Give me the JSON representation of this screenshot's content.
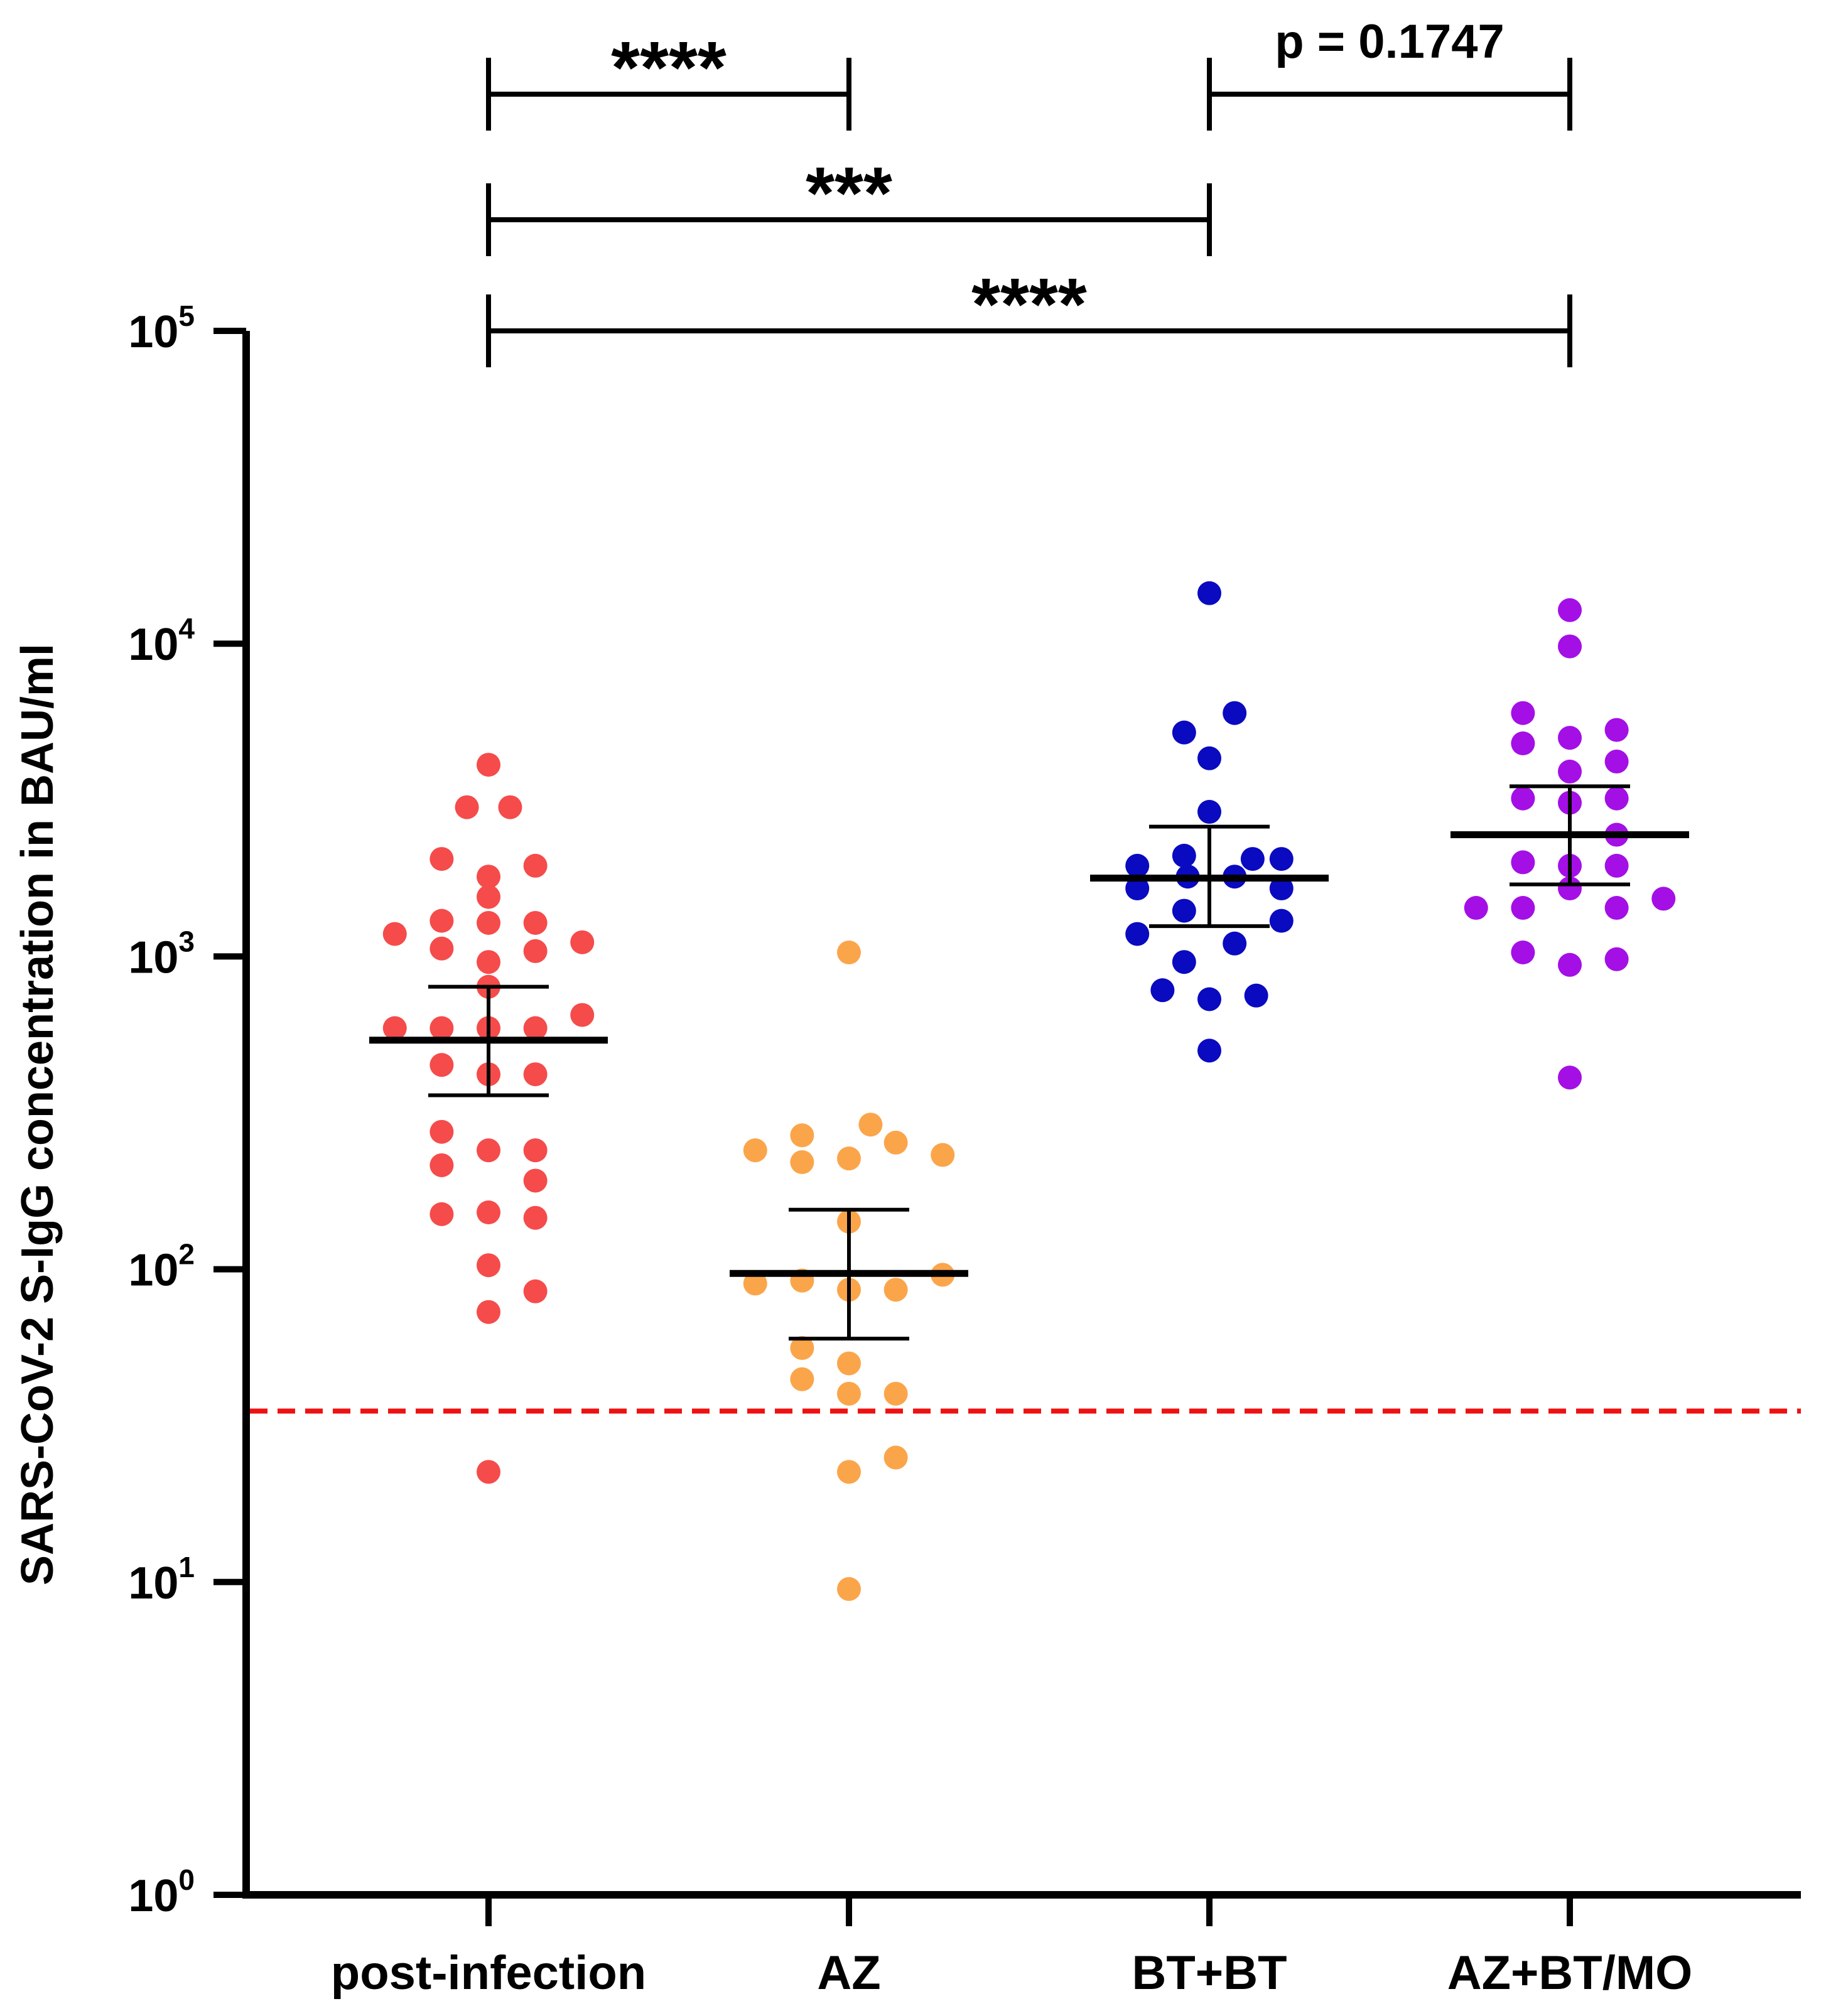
{
  "chart_data": {
    "type": "scatter",
    "subtype": "dot-plot-with-mean-and-sem",
    "title": "",
    "xlabel": "",
    "ylabel": "SARS-CoV-2 S-IgG concentration in BAU/ml",
    "yscale": "log",
    "ylim": [
      1,
      100000
    ],
    "y_ticks": [
      {
        "value": 1,
        "base": "10",
        "exp": "0"
      },
      {
        "value": 10,
        "base": "10",
        "exp": "1"
      },
      {
        "value": 100,
        "base": "10",
        "exp": "2"
      },
      {
        "value": 1000,
        "base": "10",
        "exp": "3"
      },
      {
        "value": 10000,
        "base": "10",
        "exp": "4"
      },
      {
        "value": 100000,
        "base": "10",
        "exp": "5"
      }
    ],
    "categories": [
      "post-infection",
      "AZ",
      "BT+BT",
      "AZ+BT/MO"
    ],
    "threshold": {
      "value": 35.2,
      "color": "#ee1111",
      "style": "dashed"
    },
    "series": [
      {
        "name": "post-infection",
        "color": "#f54b4b",
        "mean": 540,
        "sem_low": 360,
        "sem_high": 800,
        "points": [
          {
            "dx": 0,
            "y": 4100
          },
          {
            "dx": -0.06,
            "y": 3000
          },
          {
            "dx": 0.06,
            "y": 3000
          },
          {
            "dx": -0.13,
            "y": 2050
          },
          {
            "dx": 0.13,
            "y": 1950
          },
          {
            "dx": 0,
            "y": 1800
          },
          {
            "dx": 0,
            "y": 1550
          },
          {
            "dx": -0.13,
            "y": 1300
          },
          {
            "dx": 0.13,
            "y": 1280
          },
          {
            "dx": 0,
            "y": 1280
          },
          {
            "dx": -0.26,
            "y": 1180
          },
          {
            "dx": 0.26,
            "y": 1110
          },
          {
            "dx": -0.13,
            "y": 1060
          },
          {
            "dx": 0.13,
            "y": 1040
          },
          {
            "dx": 0,
            "y": 960
          },
          {
            "dx": 0,
            "y": 800
          },
          {
            "dx": 0.26,
            "y": 650
          },
          {
            "dx": -0.26,
            "y": 590
          },
          {
            "dx": -0.13,
            "y": 590
          },
          {
            "dx": 0,
            "y": 590
          },
          {
            "dx": 0.13,
            "y": 590
          },
          {
            "dx": -0.13,
            "y": 450
          },
          {
            "dx": 0,
            "y": 420
          },
          {
            "dx": 0.13,
            "y": 420
          },
          {
            "dx": -0.13,
            "y": 275
          },
          {
            "dx": 0,
            "y": 240
          },
          {
            "dx": 0.13,
            "y": 240
          },
          {
            "dx": -0.13,
            "y": 215
          },
          {
            "dx": 0.13,
            "y": 192
          },
          {
            "dx": -0.13,
            "y": 150
          },
          {
            "dx": 0,
            "y": 152
          },
          {
            "dx": 0.13,
            "y": 146
          },
          {
            "dx": 0,
            "y": 103
          },
          {
            "dx": 0.13,
            "y": 85
          },
          {
            "dx": 0,
            "y": 73
          },
          {
            "dx": 0,
            "y": 22.5
          }
        ]
      },
      {
        "name": "AZ",
        "color": "#fba54a",
        "mean": 97,
        "sem_low": 60,
        "sem_high": 155,
        "points": [
          {
            "dx": 0,
            "y": 1030
          },
          {
            "dx": 0.06,
            "y": 290
          },
          {
            "dx": -0.13,
            "y": 268
          },
          {
            "dx": 0.13,
            "y": 254
          },
          {
            "dx": -0.26,
            "y": 240
          },
          {
            "dx": 0.26,
            "y": 232
          },
          {
            "dx": -0.13,
            "y": 220
          },
          {
            "dx": 0,
            "y": 226
          },
          {
            "dx": 0,
            "y": 142
          },
          {
            "dx": 0.26,
            "y": 96
          },
          {
            "dx": -0.26,
            "y": 90
          },
          {
            "dx": -0.13,
            "y": 92
          },
          {
            "dx": 0,
            "y": 86
          },
          {
            "dx": 0.13,
            "y": 86
          },
          {
            "dx": -0.13,
            "y": 56
          },
          {
            "dx": 0,
            "y": 50
          },
          {
            "dx": -0.13,
            "y": 44.5
          },
          {
            "dx": 0,
            "y": 40
          },
          {
            "dx": 0.13,
            "y": 40
          },
          {
            "dx": 0.13,
            "y": 25
          },
          {
            "dx": 0,
            "y": 22.5
          },
          {
            "dx": 0,
            "y": 9.5
          }
        ]
      },
      {
        "name": "BT+BT",
        "color": "#0a0ac0",
        "mean": 1780,
        "sem_low": 1250,
        "sem_high": 2600,
        "points": [
          {
            "dx": 0,
            "y": 14500
          },
          {
            "dx": 0.07,
            "y": 6000
          },
          {
            "dx": -0.07,
            "y": 5200
          },
          {
            "dx": 0,
            "y": 4300
          },
          {
            "dx": 0,
            "y": 2900
          },
          {
            "dx": -0.07,
            "y": 2100
          },
          {
            "dx": 0.12,
            "y": 2050
          },
          {
            "dx": -0.2,
            "y": 1950
          },
          {
            "dx": 0.2,
            "y": 2050
          },
          {
            "dx": -0.06,
            "y": 1800
          },
          {
            "dx": 0.07,
            "y": 1800
          },
          {
            "dx": -0.2,
            "y": 1650
          },
          {
            "dx": 0.2,
            "y": 1650
          },
          {
            "dx": -0.07,
            "y": 1400
          },
          {
            "dx": 0.2,
            "y": 1300
          },
          {
            "dx": -0.2,
            "y": 1180
          },
          {
            "dx": 0.07,
            "y": 1100
          },
          {
            "dx": -0.07,
            "y": 960
          },
          {
            "dx": -0.13,
            "y": 780
          },
          {
            "dx": 0.13,
            "y": 750
          },
          {
            "dx": 0,
            "y": 730
          },
          {
            "dx": 0,
            "y": 500
          }
        ]
      },
      {
        "name": "AZ+BT/MO",
        "color": "#a40fe6",
        "mean": 2450,
        "sem_low": 1700,
        "sem_high": 3500,
        "points": [
          {
            "dx": 0,
            "y": 12800
          },
          {
            "dx": 0,
            "y": 9800
          },
          {
            "dx": -0.13,
            "y": 6000
          },
          {
            "dx": 0.13,
            "y": 5300
          },
          {
            "dx": 0,
            "y": 5000
          },
          {
            "dx": -0.13,
            "y": 4800
          },
          {
            "dx": 0.13,
            "y": 4200
          },
          {
            "dx": 0,
            "y": 3900
          },
          {
            "dx": -0.13,
            "y": 3200
          },
          {
            "dx": 0,
            "y": 3100
          },
          {
            "dx": 0.13,
            "y": 3200
          },
          {
            "dx": 0.13,
            "y": 2450
          },
          {
            "dx": -0.13,
            "y": 2000
          },
          {
            "dx": 0,
            "y": 1950
          },
          {
            "dx": 0.13,
            "y": 1950
          },
          {
            "dx": 0,
            "y": 1650
          },
          {
            "dx": 0.26,
            "y": 1530
          },
          {
            "dx": -0.26,
            "y": 1430
          },
          {
            "dx": -0.13,
            "y": 1430
          },
          {
            "dx": 0.13,
            "y": 1430
          },
          {
            "dx": -0.13,
            "y": 1030
          },
          {
            "dx": 0.13,
            "y": 980
          },
          {
            "dx": 0,
            "y": 940
          },
          {
            "dx": 0,
            "y": 410
          }
        ]
      }
    ],
    "comparisons": [
      {
        "from": 0,
        "to": 1,
        "label": "****",
        "level": 1
      },
      {
        "from": 2,
        "to": 3,
        "label": "p = 0.1747",
        "level": 1
      },
      {
        "from": 0,
        "to": 2,
        "label": "***",
        "level": 2
      },
      {
        "from": 0,
        "to": 3,
        "label": "****",
        "level": 3
      }
    ]
  }
}
